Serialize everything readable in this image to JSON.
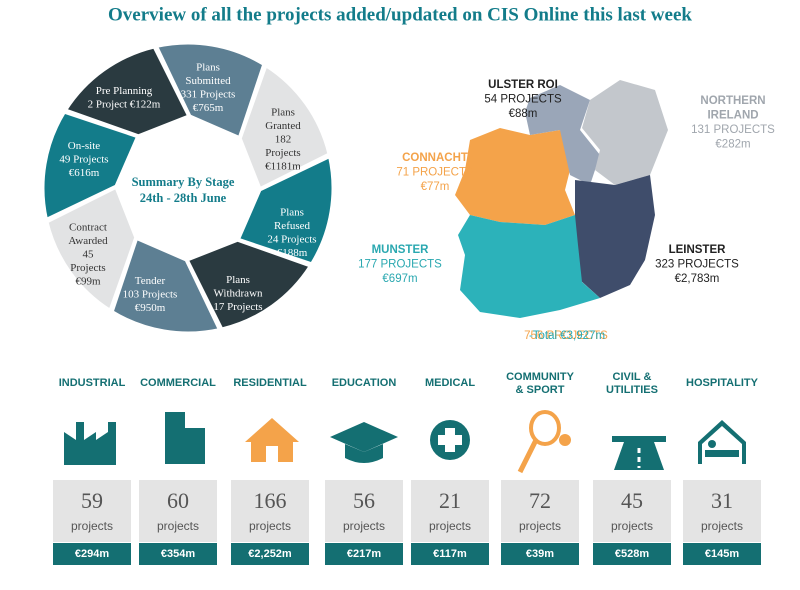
{
  "title": "Overview of all the projects added/updated on CIS Online this last week",
  "stages": {
    "center": [
      "Summary By Stage",
      "24th - 28th June"
    ],
    "segments": [
      {
        "lines": [
          "Plans",
          "Submitted",
          "331 Projects",
          "€765m"
        ]
      },
      {
        "lines": [
          "Plans",
          "Granted",
          "182",
          "Projects",
          "€1181m"
        ]
      },
      {
        "lines": [
          "Plans",
          "Refused",
          "24 Projects",
          "€188m"
        ]
      },
      {
        "lines": [
          "Plans",
          "Withdrawn",
          "17 Projects"
        ]
      },
      {
        "lines": [
          "Tender",
          "103 Projects",
          "€950m"
        ]
      },
      {
        "lines": [
          "Contract",
          "Awarded",
          "45",
          "Projects",
          "€99m"
        ]
      },
      {
        "lines": [
          "On-site",
          "49 Projects",
          "€616m"
        ]
      },
      {
        "lines": [
          "Pre Planning",
          "2 Project €122m"
        ]
      }
    ]
  },
  "map": {
    "regions": [
      {
        "lines": [
          "ULSTER ROI",
          "54 PROJECTS",
          "€88m"
        ]
      },
      {
        "lines": [
          "NORTHERN",
          "IRELAND",
          "131 PROJECTS",
          "€282m"
        ]
      },
      {
        "lines": [
          "CONNACHT",
          "71 PROJECTS",
          "€77m"
        ]
      },
      {
        "lines": [
          "MUNSTER",
          "177 PROJECTS",
          "€697m"
        ]
      },
      {
        "lines": [
          "LEINSTER",
          "323 PROJECTS",
          "€2,783m"
        ]
      }
    ],
    "total": [
      "756 PROJECTS",
      "-Total €3,927m"
    ]
  },
  "sectors": [
    {
      "name": [
        "INDUSTRIAL"
      ],
      "count": "59",
      "unit": "projects",
      "value": "€294m"
    },
    {
      "name": [
        "COMMERCIAL"
      ],
      "count": "60",
      "unit": "projects",
      "value": "€354m"
    },
    {
      "name": [
        "RESIDENTIAL"
      ],
      "count": "166",
      "unit": "projects",
      "value": "€2,252m"
    },
    {
      "name": [
        "EDUCATION"
      ],
      "count": "56",
      "unit": "projects",
      "value": "€217m"
    },
    {
      "name": [
        "MEDICAL"
      ],
      "count": "21",
      "unit": "projects",
      "value": "€117m"
    },
    {
      "name": [
        "COMMUNITY",
        "& SPORT"
      ],
      "count": "72",
      "unit": "projects",
      "value": "€39m"
    },
    {
      "name": [
        "CIVIL &",
        "UTILITIES"
      ],
      "count": "45",
      "unit": "projects",
      "value": "€528m"
    },
    {
      "name": [
        "HOSPITALITY"
      ],
      "count": "31",
      "unit": "projects",
      "value": "€145m"
    }
  ]
}
